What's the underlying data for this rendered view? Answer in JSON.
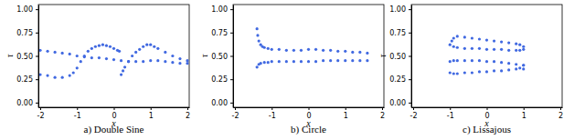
{
  "chart_data": [
    {
      "type": "scatter",
      "title": "a) Double Sine",
      "x_label": "x",
      "y_label": "τ",
      "xlim": [
        -2.05,
        2.05
      ],
      "ylim": [
        -0.05,
        1.05
      ],
      "xticks": [
        -2,
        -1,
        0,
        1,
        2
      ],
      "yticks": [
        {
          "value": 0,
          "label": "0.00"
        },
        {
          "value": 0.25,
          "label": "0.25"
        },
        {
          "value": 0.5,
          "label": "0.50"
        },
        {
          "value": 0.75,
          "label": "0.75"
        },
        {
          "value": 1,
          "label": "1.00"
        }
      ],
      "series": [
        {
          "color": "#4169e1",
          "x": [
            -2,
            -1.8,
            -1.6,
            -1.4,
            -1.2,
            -1.0,
            -0.8,
            -0.6,
            -0.4,
            -0.2,
            0,
            0.2,
            0.4,
            0.6,
            0.8,
            1.0,
            1.2,
            1.4,
            1.6,
            1.8,
            2.0,
            -2,
            -1.8,
            -1.6,
            -1.4,
            -1.2,
            -1.1,
            -1.0,
            -0.9,
            -0.8,
            -0.7,
            -0.6,
            -0.5,
            -0.4,
            -0.3,
            -0.2,
            -0.1,
            0,
            0.1,
            0.15,
            0.2,
            0.25,
            0.3,
            0.4,
            0.5,
            0.6,
            0.7,
            0.8,
            0.9,
            1.0,
            1.1,
            1.2,
            1.4,
            1.6,
            1.8,
            2.0
          ],
          "values": [
            0.56,
            0.55,
            0.54,
            0.53,
            0.52,
            0.5,
            0.49,
            0.48,
            0.48,
            0.47,
            0.46,
            0.45,
            0.44,
            0.44,
            0.44,
            0.45,
            0.45,
            0.44,
            0.43,
            0.42,
            0.42,
            0.3,
            0.29,
            0.27,
            0.27,
            0.29,
            0.32,
            0.37,
            0.44,
            0.5,
            0.55,
            0.58,
            0.6,
            0.61,
            0.62,
            0.61,
            0.6,
            0.58,
            0.56,
            0.55,
            0.3,
            0.34,
            0.38,
            0.44,
            0.5,
            0.54,
            0.57,
            0.6,
            0.62,
            0.62,
            0.6,
            0.58,
            0.54,
            0.5,
            0.47,
            0.45
          ]
        }
      ]
    },
    {
      "type": "scatter",
      "title": "b) Circle",
      "x_label": "x",
      "y_label": "τ",
      "xlim": [
        -2.05,
        2.05
      ],
      "ylim": [
        -0.05,
        1.05
      ],
      "xticks": [
        -2,
        -1,
        0,
        1,
        2
      ],
      "yticks": [
        {
          "value": 0,
          "label": "0.00"
        },
        {
          "value": 0.25,
          "label": "0.25"
        },
        {
          "value": 0.5,
          "label": "0.50"
        },
        {
          "value": 0.75,
          "label": "0.75"
        },
        {
          "value": 1,
          "label": "1.00"
        }
      ],
      "series": [
        {
          "color": "#4169e1",
          "x": [
            -1.4,
            -1.38,
            -1.35,
            -1.3,
            -1.25,
            -1.2,
            -1.1,
            -1.0,
            -0.8,
            -0.6,
            -0.4,
            -0.2,
            0,
            0.2,
            0.4,
            0.6,
            0.8,
            1.0,
            1.2,
            1.4,
            1.6,
            -1.4,
            -1.35,
            -1.3,
            -1.2,
            -1.1,
            -1.0,
            -0.8,
            -0.6,
            -0.4,
            -0.2,
            0,
            0.2,
            0.4,
            0.6,
            0.8,
            1.0,
            1.2,
            1.4,
            1.6
          ],
          "values": [
            0.79,
            0.72,
            0.66,
            0.62,
            0.6,
            0.59,
            0.58,
            0.57,
            0.57,
            0.56,
            0.56,
            0.56,
            0.57,
            0.57,
            0.56,
            0.56,
            0.55,
            0.55,
            0.54,
            0.54,
            0.53,
            0.38,
            0.41,
            0.42,
            0.43,
            0.43,
            0.44,
            0.44,
            0.44,
            0.44,
            0.44,
            0.44,
            0.44,
            0.45,
            0.45,
            0.45,
            0.45,
            0.45,
            0.45,
            0.45
          ]
        }
      ]
    },
    {
      "type": "scatter",
      "title": "c) Lissajous",
      "x_label": "x",
      "y_label": "τ",
      "xlim": [
        -2.05,
        2.05
      ],
      "ylim": [
        -0.05,
        1.05
      ],
      "xticks": [
        -2,
        -1,
        0,
        1,
        2
      ],
      "yticks": [
        {
          "value": 0,
          "label": "0.00"
        },
        {
          "value": 0.25,
          "label": "0.25"
        },
        {
          "value": 0.5,
          "label": "0.50"
        },
        {
          "value": 0.75,
          "label": "0.75"
        },
        {
          "value": 1,
          "label": "1.00"
        }
      ],
      "series": [
        {
          "color": "#4169e1",
          "x": [
            -0.95,
            -0.9,
            -0.8,
            -0.6,
            -0.4,
            -0.2,
            0,
            0.2,
            0.4,
            0.6,
            0.8,
            0.9,
            1.0,
            -1.0,
            -0.9,
            -0.8,
            -0.6,
            -0.4,
            -0.2,
            0,
            0.2,
            0.4,
            0.6,
            0.8,
            0.9,
            1.0,
            -1.0,
            -0.9,
            -0.8,
            -0.6,
            -0.4,
            -0.2,
            0,
            0.2,
            0.4,
            0.6,
            0.8,
            1.0,
            -1.0,
            -0.9,
            -0.8,
            -0.6,
            -0.4,
            -0.2,
            0,
            0.2,
            0.4,
            0.6,
            0.8,
            0.9,
            1.0,
            1.0
          ],
          "values": [
            0.66,
            0.69,
            0.71,
            0.7,
            0.69,
            0.68,
            0.67,
            0.66,
            0.65,
            0.64,
            0.63,
            0.62,
            0.6,
            0.62,
            0.6,
            0.59,
            0.58,
            0.58,
            0.58,
            0.57,
            0.57,
            0.57,
            0.56,
            0.56,
            0.56,
            0.57,
            0.44,
            0.45,
            0.45,
            0.45,
            0.45,
            0.45,
            0.44,
            0.44,
            0.43,
            0.42,
            0.41,
            0.4,
            0.32,
            0.31,
            0.31,
            0.32,
            0.32,
            0.33,
            0.33,
            0.34,
            0.34,
            0.35,
            0.36,
            0.37,
            0.4,
            0.36
          ]
        }
      ]
    }
  ]
}
